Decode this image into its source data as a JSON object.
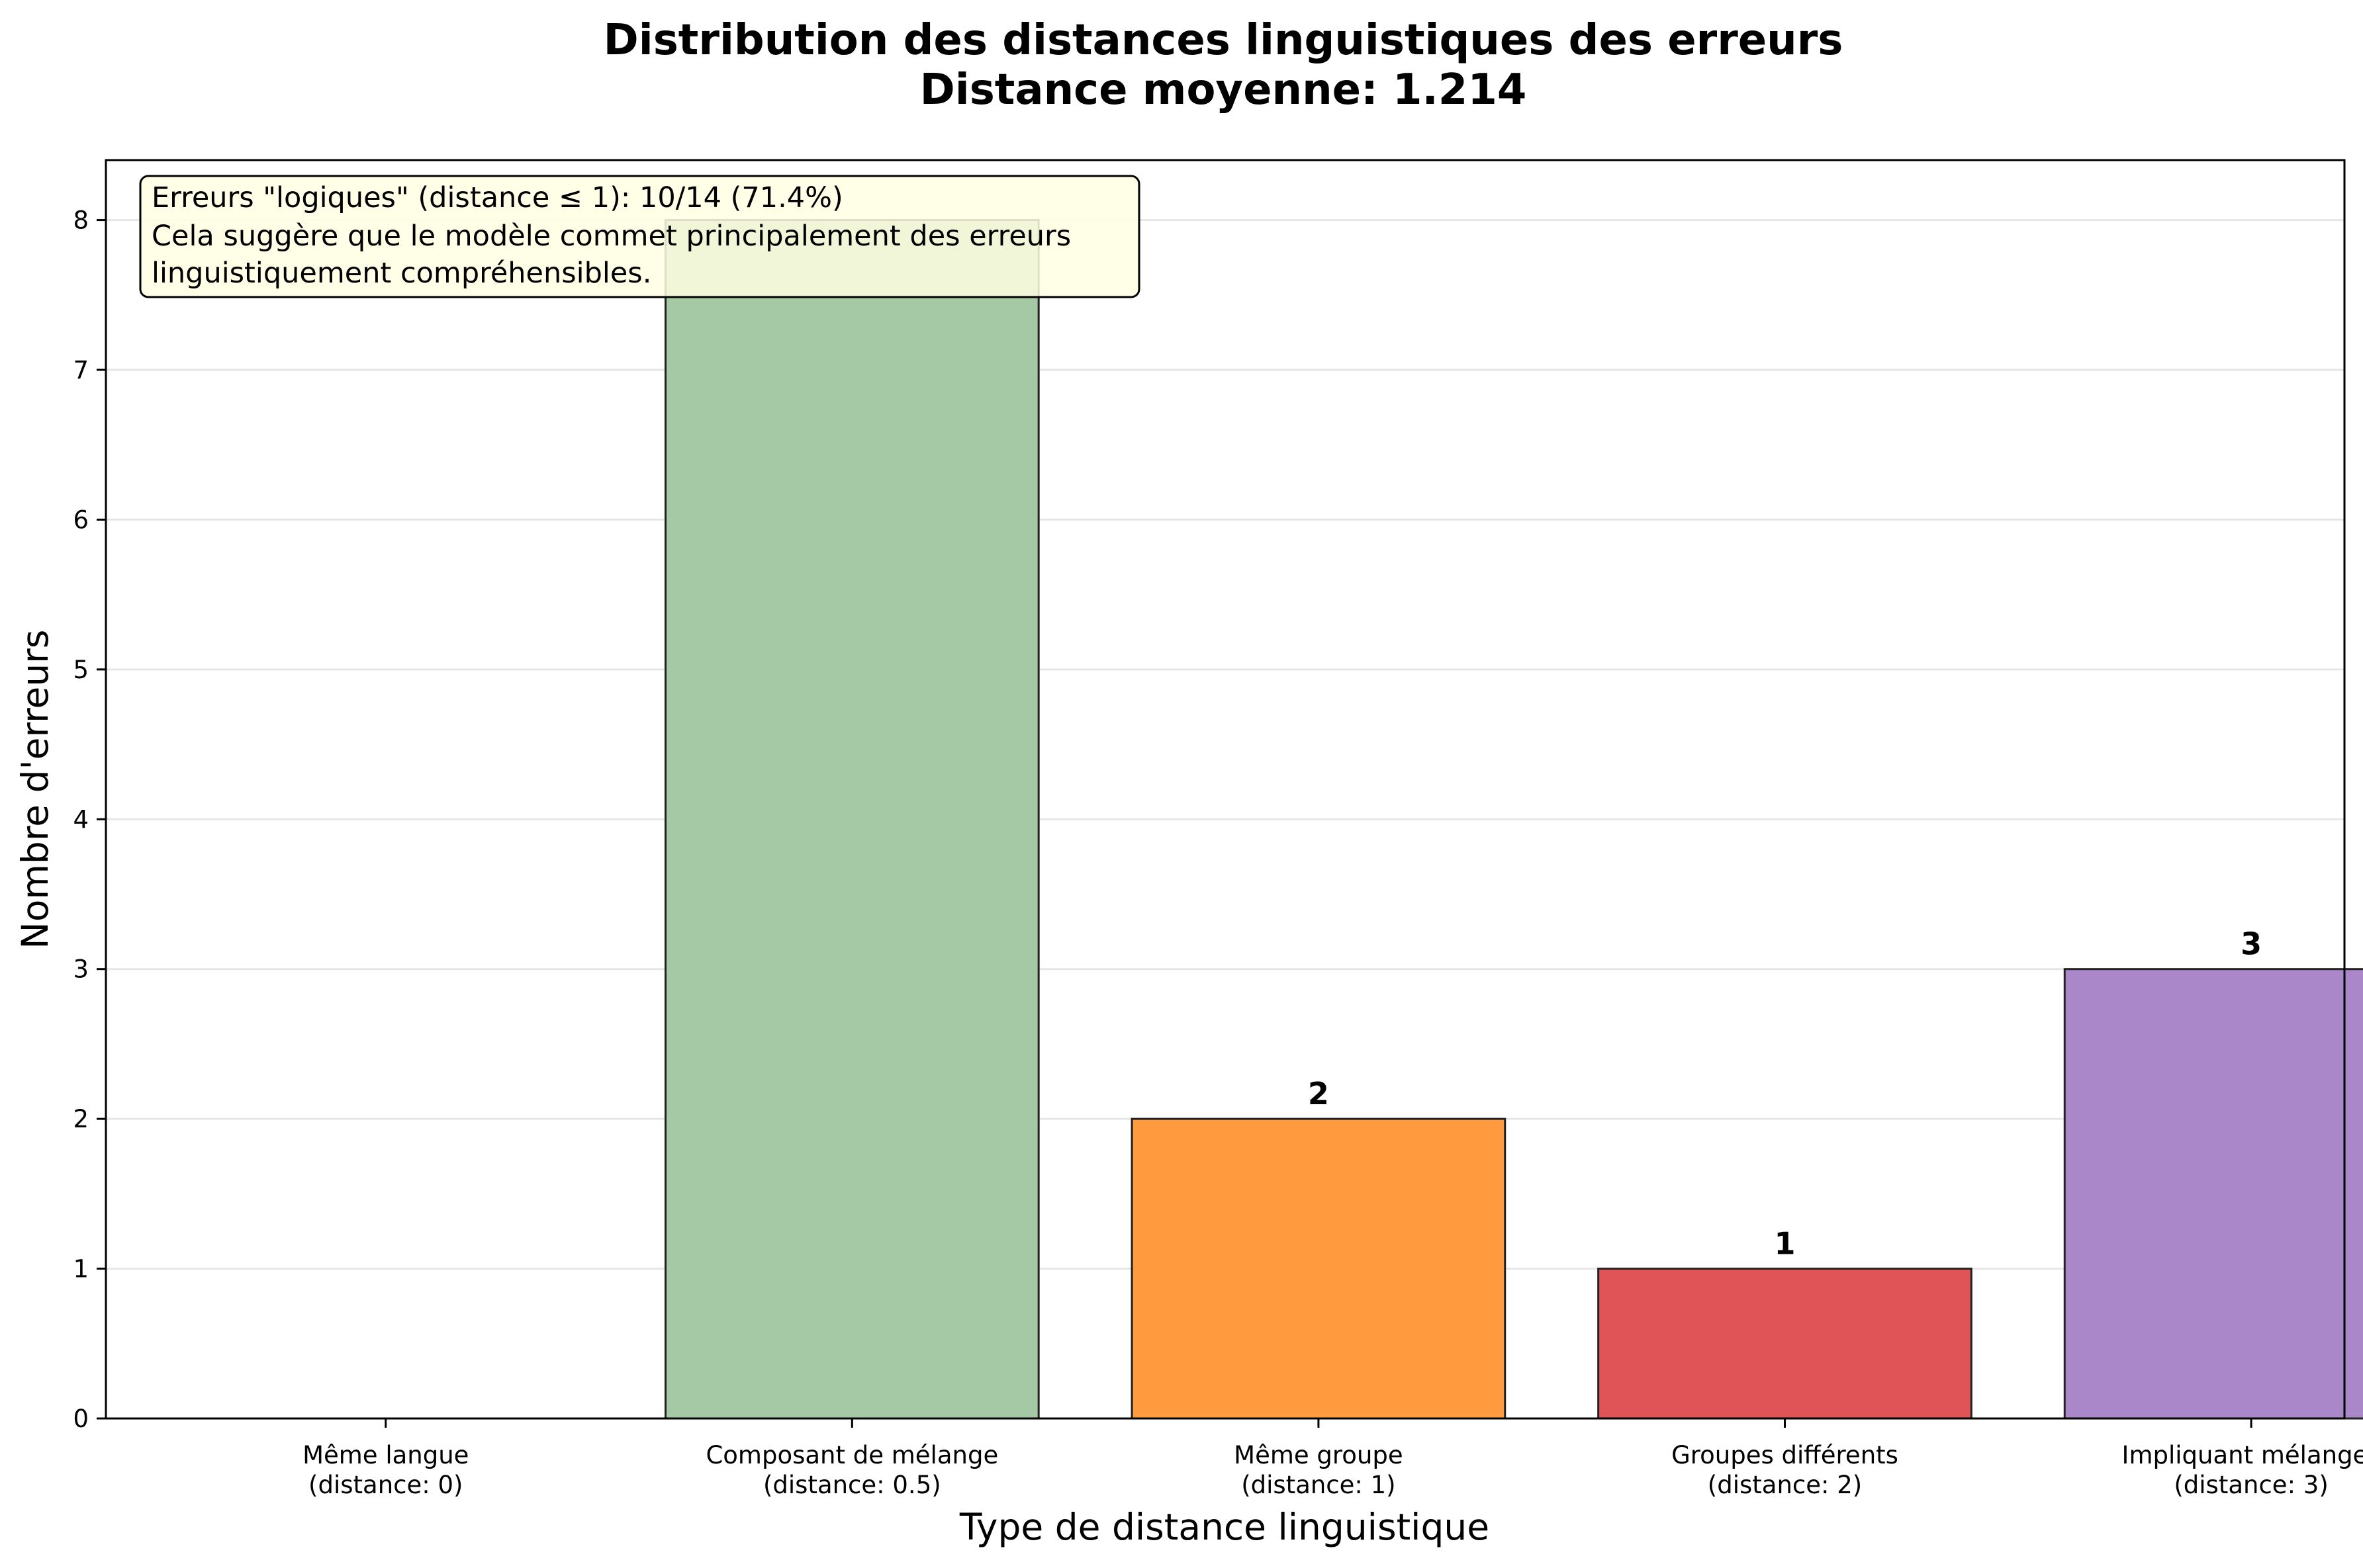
{
  "chart_data": {
    "type": "bar",
    "title": "Distribution des distances linguistiques des erreurs",
    "subtitle": "Distance moyenne: 1.214",
    "xlabel": "Type de distance linguistique",
    "ylabel": "Nombre d'erreurs",
    "categories": [
      [
        "Même langue",
        "(distance: 0)"
      ],
      [
        "Composant de mélange",
        "(distance: 0.5)"
      ],
      [
        "Même groupe",
        "(distance: 1)"
      ],
      [
        "Groupes différents",
        "(distance: 2)"
      ],
      [
        "Impliquant mélanges",
        "(distance: 3)"
      ]
    ],
    "values": [
      0,
      8,
      2,
      1,
      3
    ],
    "data_labels": [
      "",
      "",
      "2",
      "1",
      "3"
    ],
    "colors": [
      "#2ca02c",
      "#a5c9a4",
      "#ff9a3f",
      "#e05457",
      "#a987c9"
    ],
    "ylim": [
      0,
      8.4
    ],
    "yticks": [
      0,
      1,
      2,
      3,
      4,
      5,
      6,
      7,
      8
    ],
    "grid": "y",
    "annotation": {
      "lines": [
        "Erreurs \"logiques\" (distance ≤ 1): 10/14 (71.4%)",
        "Cela suggère que le modèle commet principalement des erreurs",
        "linguistiquement compréhensibles."
      ],
      "background": "#fffee3",
      "placement": "top-left"
    }
  }
}
